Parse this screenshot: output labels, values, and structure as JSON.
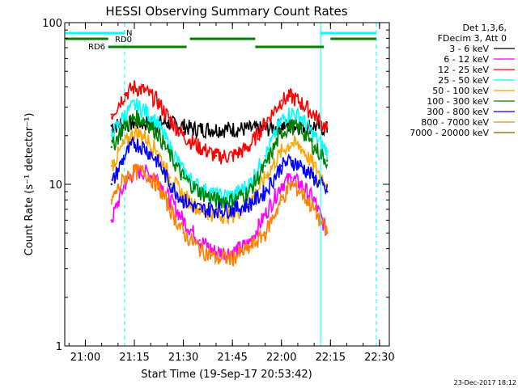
{
  "chart_data": {
    "type": "line",
    "title": "HESSI Observing Summary Count Rates",
    "xlabel": "Start Time (19-Sep-17 20:53:42)",
    "ylabel": "Count Rate (s⁻¹ detector⁻¹)",
    "y_scale": "log",
    "ylim": [
      1,
      100
    ],
    "xlim": [
      "20:53:42",
      "22:33:00"
    ],
    "x_ticks": [
      "21:00",
      "21:15",
      "21:30",
      "21:45",
      "22:00",
      "22:15",
      "22:30"
    ],
    "y_ticks": [
      "1",
      "10",
      "100"
    ],
    "legend_position": "top-right",
    "legend_header": [
      "Det 1,3,6,",
      "FDecim 3, Att 0"
    ],
    "grid": false,
    "series": [
      {
        "name": "3 - 6 keV",
        "color": "#000000",
        "x": [
          "21:08",
          "21:15",
          "21:20",
          "21:25",
          "21:30",
          "21:33",
          "21:40",
          "21:45",
          "21:50",
          "21:55",
          "22:00",
          "22:05",
          "22:10",
          "22:14"
        ],
        "y": [
          23,
          24,
          24,
          24,
          23,
          22,
          22,
          22,
          22,
          22,
          23,
          23,
          23,
          22
        ]
      },
      {
        "name": "6 - 12 keV",
        "color": "#ff00ff",
        "x": [
          "21:08",
          "21:12",
          "21:15",
          "21:18",
          "21:22",
          "21:26",
          "21:30",
          "21:35",
          "21:40",
          "21:45",
          "21:50",
          "21:55",
          "22:00",
          "22:03",
          "22:06",
          "22:10",
          "22:14"
        ],
        "y": [
          6,
          10,
          12,
          12,
          11,
          8,
          6,
          4.5,
          3.8,
          3.8,
          4.3,
          6.5,
          10,
          11,
          10,
          8,
          5
        ]
      },
      {
        "name": "12 - 25 keV",
        "color": "#ff0000",
        "x": [
          "21:08",
          "21:12",
          "21:15",
          "21:18",
          "21:22",
          "21:26",
          "21:30",
          "21:35",
          "21:40",
          "21:45",
          "21:50",
          "21:55",
          "22:00",
          "22:03",
          "22:06",
          "22:10",
          "22:14"
        ],
        "y": [
          27,
          36,
          40,
          38,
          33,
          25,
          20,
          17,
          15,
          15,
          17,
          24,
          33,
          35,
          32,
          27,
          22
        ]
      },
      {
        "name": "25 - 50 keV",
        "color": "#00ffff",
        "x": [
          "21:08",
          "21:12",
          "21:15",
          "21:18",
          "21:22",
          "21:26",
          "21:30",
          "21:35",
          "21:40",
          "21:45",
          "21:50",
          "21:55",
          "22:00",
          "22:03",
          "22:06",
          "22:10",
          "22:14"
        ],
        "y": [
          20,
          27,
          31,
          29,
          24,
          17,
          12,
          9.5,
          8.5,
          8.5,
          10,
          15,
          25,
          28,
          26,
          20,
          16
        ]
      },
      {
        "name": "50 - 100 keV",
        "color": "#ffa500",
        "x": [
          "21:08",
          "21:12",
          "21:15",
          "21:18",
          "21:22",
          "21:26",
          "21:30",
          "21:35",
          "21:40",
          "21:45",
          "21:50",
          "21:55",
          "22:00",
          "22:03",
          "22:06",
          "22:10",
          "22:14"
        ],
        "y": [
          13,
          18,
          21,
          20,
          16,
          11,
          8.5,
          7,
          6.5,
          6.5,
          7.5,
          11,
          16,
          18,
          17,
          13,
          10
        ]
      },
      {
        "name": "100 - 300 keV",
        "color": "#008000",
        "x": [
          "21:08",
          "21:12",
          "21:15",
          "21:18",
          "21:22",
          "21:26",
          "21:30",
          "21:35",
          "21:40",
          "21:45",
          "21:50",
          "21:55",
          "22:00",
          "22:03",
          "22:06",
          "22:10",
          "22:14"
        ],
        "y": [
          17,
          23,
          26,
          25,
          21,
          15,
          11,
          9,
          8,
          8,
          9,
          13,
          21,
          23,
          22,
          17,
          14
        ]
      },
      {
        "name": "300 - 800 keV",
        "color": "#0000ff",
        "x": [
          "21:08",
          "21:12",
          "21:15",
          "21:18",
          "21:22",
          "21:26",
          "21:30",
          "21:35",
          "21:40",
          "21:45",
          "21:50",
          "21:55",
          "22:00",
          "22:03",
          "22:06",
          "22:10",
          "22:14"
        ],
        "y": [
          10,
          15,
          18,
          17,
          14,
          10,
          8,
          7,
          7,
          7,
          7.5,
          9,
          13,
          14,
          13,
          11,
          9
        ]
      },
      {
        "name": "800 - 7000 keV",
        "color": "#ff8000",
        "x": [
          "21:08",
          "21:12",
          "21:15",
          "21:18",
          "21:22",
          "21:26",
          "21:30",
          "21:35",
          "21:40",
          "21:45",
          "21:50",
          "21:55",
          "22:00",
          "22:03",
          "22:06",
          "22:10",
          "22:14"
        ],
        "y": [
          8,
          11,
          12,
          12,
          10,
          7,
          5,
          4,
          3.5,
          3.5,
          4,
          5,
          8,
          10,
          9,
          7,
          5
        ]
      },
      {
        "name": "7000 - 20000 keV",
        "color": "#806000",
        "x": [],
        "y": []
      }
    ],
    "annotations": [
      {
        "text": "N",
        "color": "#00ffff"
      },
      {
        "text": "RD0",
        "color": "#008000"
      },
      {
        "text": "RD6",
        "color": "#008000"
      }
    ],
    "vertical_lines": [
      {
        "x": "21:12",
        "style": "dashed",
        "color": "#00ffff"
      },
      {
        "x": "22:12",
        "style": "solid",
        "color": "#00ffff"
      },
      {
        "x": "22:29",
        "style": "dashed",
        "color": "#00ffff"
      }
    ],
    "flag_bars": [
      {
        "label": "N",
        "color": "#00ffff",
        "segments": [
          [
            "20:53:42",
            "21:12"
          ],
          [
            "22:12",
            "22:29"
          ]
        ]
      },
      {
        "label": "RD0",
        "color": "#008000",
        "segments": [
          [
            "20:53:42",
            "21:07"
          ],
          [
            "21:32",
            "21:52"
          ],
          [
            "22:15",
            "22:29"
          ]
        ]
      },
      {
        "label": "RD6",
        "color": "#008000",
        "segments": [
          [
            "21:07",
            "21:31"
          ],
          [
            "21:52",
            "22:13"
          ]
        ]
      }
    ],
    "footer_date": "23-Dec-2017 18:12"
  }
}
